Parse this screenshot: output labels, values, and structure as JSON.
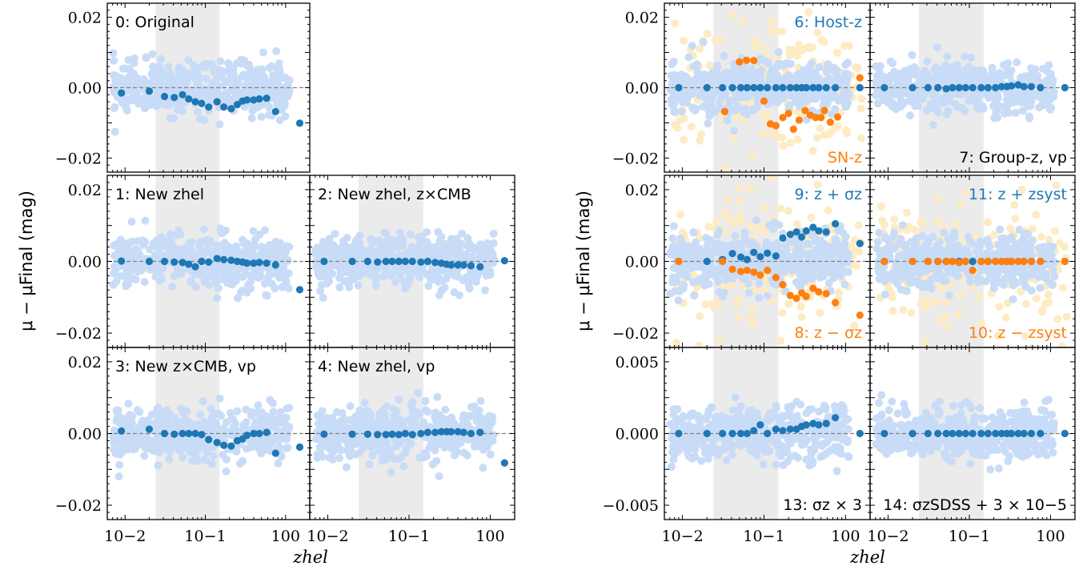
{
  "figure": {
    "left_ylabel": "μ − μFinal (mag)",
    "right_ylabel": "μ − μFinal (mag)",
    "left_xlabel": "zhel",
    "right_xlabel": "zhel",
    "xtick_labels": [
      "10−2",
      "10−1",
      "100"
    ],
    "colors": {
      "blue_points": "#1f77b4",
      "orange_points": "#ff7f0e",
      "light_blue_scatter": "#c9dcf7",
      "light_orange_scatter": "#fdebc4",
      "shaded_band": "#ebebeb",
      "zero_line": "#808080"
    }
  },
  "chart_data": [
    {
      "id": "0",
      "type": "scatter",
      "label": "0: Original",
      "xscale": "log",
      "xlim": [
        0.006,
        2.0
      ],
      "ylim": [
        -0.024,
        0.024
      ],
      "ytick_labels": [
        "0.02",
        "0.00",
        "−0.02"
      ],
      "ytick_values": [
        0.02,
        0.0,
        -0.02
      ],
      "shaded_x_range": [
        0.024,
        0.15
      ],
      "series": [
        {
          "color": "blue",
          "x": [
            0.009,
            0.02,
            0.031,
            0.041,
            0.052,
            0.062,
            0.075,
            0.09,
            0.11,
            0.14,
            0.17,
            0.21,
            0.25,
            0.29,
            0.33,
            0.4,
            0.47,
            0.58,
            0.75,
            1.5
          ],
          "y": [
            -0.0015,
            -0.001,
            -0.0025,
            -0.0028,
            -0.002,
            -0.0032,
            -0.004,
            -0.0045,
            -0.0055,
            -0.004,
            -0.0055,
            -0.006,
            -0.0048,
            -0.0038,
            -0.0035,
            -0.0035,
            -0.0032,
            -0.003,
            -0.0068,
            -0.0101
          ]
        }
      ]
    },
    {
      "id": "1",
      "type": "scatter",
      "label": "1: New zhel",
      "xscale": "log",
      "xlim": [
        0.006,
        2.0
      ],
      "ylim": [
        -0.024,
        0.024
      ],
      "ytick_labels": [
        "0.02",
        "0.00",
        "−0.02"
      ],
      "ytick_values": [
        0.02,
        0.0,
        -0.02
      ],
      "shaded_x_range": [
        0.024,
        0.15
      ],
      "series": [
        {
          "color": "blue",
          "x": [
            0.009,
            0.02,
            0.031,
            0.041,
            0.052,
            0.062,
            0.075,
            0.09,
            0.11,
            0.14,
            0.17,
            0.21,
            0.25,
            0.29,
            0.33,
            0.4,
            0.47,
            0.58,
            0.75,
            1.5
          ],
          "y": [
            0.0001,
            0.0,
            0.0,
            -0.0002,
            -0.0003,
            -0.0008,
            -0.0015,
            0.0,
            -0.0002,
            0.0008,
            0.0005,
            0.0003,
            0.0,
            -0.0002,
            -0.0005,
            -0.0005,
            -0.0003,
            -0.0005,
            -0.001,
            -0.0079
          ]
        }
      ]
    },
    {
      "id": "2",
      "type": "scatter",
      "label": "2: New zhel, z×CMB",
      "xscale": "log",
      "xlim": [
        0.006,
        2.0
      ],
      "ylim": [
        -0.024,
        0.024
      ],
      "shaded_x_range": [
        0.024,
        0.15
      ],
      "series": [
        {
          "color": "blue",
          "x": [
            0.009,
            0.02,
            0.031,
            0.041,
            0.052,
            0.062,
            0.075,
            0.09,
            0.11,
            0.14,
            0.17,
            0.21,
            0.25,
            0.29,
            0.33,
            0.4,
            0.47,
            0.58,
            0.75,
            1.5
          ],
          "y": [
            0.0,
            0.0,
            0.0,
            -0.0002,
            0.0,
            0.0,
            0.0,
            0.0,
            0.0,
            -0.0002,
            0.0,
            -0.0003,
            -0.0005,
            -0.0008,
            -0.001,
            -0.001,
            -0.001,
            -0.0012,
            -0.0015,
            0.0002
          ]
        }
      ]
    },
    {
      "id": "3",
      "type": "scatter",
      "label": "3: New z×CMB, vp",
      "xscale": "log",
      "xlim": [
        0.006,
        2.0
      ],
      "ylim": [
        -0.024,
        0.024
      ],
      "ytick_labels": [
        "0.02",
        "0.00",
        "−0.02"
      ],
      "ytick_values": [
        0.02,
        0.0,
        -0.02
      ],
      "shaded_x_range": [
        0.024,
        0.15
      ],
      "series": [
        {
          "color": "blue",
          "x": [
            0.009,
            0.02,
            0.031,
            0.041,
            0.052,
            0.062,
            0.075,
            0.09,
            0.11,
            0.14,
            0.17,
            0.21,
            0.25,
            0.29,
            0.33,
            0.4,
            0.47,
            0.58,
            0.75,
            1.5
          ],
          "y": [
            0.0007,
            0.0012,
            0.0,
            -0.0002,
            0.0,
            0.0,
            0.0,
            -0.0003,
            -0.0017,
            -0.0025,
            -0.0033,
            -0.0035,
            -0.002,
            -0.0015,
            -0.0005,
            0.0,
            0.0,
            0.0003,
            -0.0055,
            -0.0038
          ]
        }
      ]
    },
    {
      "id": "4",
      "type": "scatter",
      "label": "4: New zhel, vp",
      "xscale": "log",
      "xlim": [
        0.006,
        2.0
      ],
      "ylim": [
        -0.024,
        0.024
      ],
      "shaded_x_range": [
        0.024,
        0.15
      ],
      "series": [
        {
          "color": "blue",
          "x": [
            0.009,
            0.02,
            0.031,
            0.041,
            0.052,
            0.062,
            0.075,
            0.09,
            0.11,
            0.14,
            0.17,
            0.21,
            0.25,
            0.29,
            0.33,
            0.4,
            0.47,
            0.58,
            0.75,
            1.5
          ],
          "y": [
            -0.0002,
            -0.0002,
            -0.0002,
            -0.0003,
            -0.0003,
            -0.0002,
            -0.0003,
            0.0,
            -0.0003,
            0.0,
            0.0003,
            0.0003,
            0.0005,
            0.0005,
            0.0005,
            0.0005,
            0.0003,
            0.0,
            0.0003,
            -0.0082
          ]
        }
      ]
    },
    {
      "id": "6",
      "type": "scatter",
      "label": "6: Host-z",
      "label2": "SN-z",
      "xscale": "log",
      "xlim": [
        0.006,
        2.0
      ],
      "ylim": [
        -0.024,
        0.024
      ],
      "ytick_labels": [
        "0.02",
        "0.00",
        "−0.02"
      ],
      "ytick_values": [
        0.02,
        0.0,
        -0.02
      ],
      "shaded_x_range": [
        0.024,
        0.15
      ],
      "series": [
        {
          "color": "blue",
          "x": [
            0.009,
            0.02,
            0.031,
            0.041,
            0.052,
            0.062,
            0.075,
            0.09,
            0.11,
            0.14,
            0.17,
            0.21,
            0.25,
            0.29,
            0.33,
            0.4,
            0.47,
            0.58,
            0.75,
            1.5
          ],
          "y": [
            0.0,
            0.0,
            0.0,
            0.0,
            0.0,
            0.0,
            0.0,
            0.0,
            0.0,
            0.0,
            0.0,
            0.0,
            0.0,
            0.0,
            0.0,
            0.0,
            0.0,
            0.0,
            0.0,
            0.0
          ]
        },
        {
          "color": "orange",
          "x": [
            0.033,
            0.05,
            0.061,
            0.075,
            0.1,
            0.12,
            0.14,
            0.17,
            0.2,
            0.23,
            0.27,
            0.32,
            0.37,
            0.43,
            0.5,
            0.55,
            0.65,
            0.8,
            1.5
          ],
          "y": [
            -0.0068,
            0.0073,
            0.0078,
            0.0077,
            -0.0038,
            -0.0103,
            -0.0108,
            -0.0085,
            -0.0073,
            -0.0118,
            -0.0092,
            -0.0065,
            -0.0078,
            -0.0085,
            -0.0085,
            -0.0065,
            -0.0098,
            -0.0083,
            0.0028
          ]
        }
      ]
    },
    {
      "id": "7",
      "type": "scatter",
      "label": "7: Group-z, vp",
      "xscale": "log",
      "xlim": [
        0.006,
        2.0
      ],
      "ylim": [
        -0.024,
        0.024
      ],
      "shaded_x_range": [
        0.024,
        0.15
      ],
      "series": [
        {
          "color": "blue",
          "x": [
            0.009,
            0.02,
            0.031,
            0.041,
            0.052,
            0.062,
            0.075,
            0.09,
            0.11,
            0.14,
            0.17,
            0.21,
            0.25,
            0.29,
            0.33,
            0.4,
            0.47,
            0.58,
            0.75,
            1.5
          ],
          "y": [
            0.0,
            0.0,
            0.0,
            0.0,
            -0.0003,
            0.0,
            0.0,
            0.0,
            0.0,
            0.0,
            0.0,
            0.0,
            0.0003,
            0.0003,
            0.0005,
            0.0008,
            0.0003,
            0.0003,
            0.0,
            0.0
          ]
        }
      ]
    },
    {
      "id": "9",
      "type": "scatter",
      "label": "9: z + σz",
      "label2": "8: z − σz",
      "xscale": "log",
      "xlim": [
        0.006,
        2.0
      ],
      "ylim": [
        -0.024,
        0.024
      ],
      "ytick_labels": [
        "0.02",
        "0.00",
        "−0.02"
      ],
      "ytick_values": [
        0.02,
        0.0,
        -0.02
      ],
      "shaded_x_range": [
        0.024,
        0.15
      ],
      "series": [
        {
          "color": "blue",
          "x": [
            0.009,
            0.02,
            0.031,
            0.041,
            0.052,
            0.062,
            0.075,
            0.09,
            0.11,
            0.14,
            0.17,
            0.21,
            0.25,
            0.29,
            0.33,
            0.4,
            0.47,
            0.58,
            0.75,
            1.5
          ],
          "y": [
            0.0,
            0.0,
            0.0005,
            0.0022,
            0.0012,
            0.0005,
            0.0025,
            0.0013,
            0.0023,
            0.0015,
            0.0065,
            0.0075,
            0.0082,
            0.0068,
            0.0085,
            0.0095,
            0.0085,
            0.0082,
            0.0105,
            0.005
          ]
        },
        {
          "color": "orange",
          "x": [
            0.009,
            0.031,
            0.041,
            0.052,
            0.062,
            0.075,
            0.09,
            0.11,
            0.14,
            0.17,
            0.21,
            0.25,
            0.29,
            0.33,
            0.4,
            0.47,
            0.58,
            0.75,
            1.5
          ],
          "y": [
            0.0,
            0.0,
            -0.0022,
            -0.0028,
            -0.0025,
            -0.003,
            -0.0038,
            -0.0025,
            -0.0045,
            -0.0065,
            -0.0095,
            -0.0103,
            -0.0088,
            -0.0098,
            -0.0075,
            -0.0085,
            -0.009,
            -0.0115,
            -0.015
          ]
        }
      ]
    },
    {
      "id": "11",
      "type": "scatter",
      "label": "11: z + zsyst",
      "label2": "10: z − zsyst",
      "xscale": "log",
      "xlim": [
        0.006,
        2.0
      ],
      "ylim": [
        -0.024,
        0.024
      ],
      "shaded_x_range": [
        0.024,
        0.15
      ],
      "series": [
        {
          "color": "blue",
          "x": [
            0.009,
            0.02,
            0.031,
            0.041,
            0.052,
            0.062,
            0.075,
            0.09,
            0.11,
            0.14,
            0.17,
            0.21,
            0.25,
            0.29,
            0.33,
            0.4,
            0.47,
            0.58,
            0.75,
            1.5
          ],
          "y": [
            0.0,
            0.0,
            0.0,
            0.0,
            0.0,
            0.0,
            0.0,
            0.0,
            0.0,
            0.0,
            0.0,
            0.0,
            0.0,
            0.0,
            0.0,
            0.0,
            0.0,
            0.0,
            0.0,
            0.0
          ]
        },
        {
          "color": "orange",
          "x": [
            0.009,
            0.02,
            0.031,
            0.041,
            0.052,
            0.062,
            0.075,
            0.09,
            0.11,
            0.14,
            0.17,
            0.21,
            0.25,
            0.29,
            0.33,
            0.4,
            0.47,
            0.58,
            0.75,
            1.5
          ],
          "y": [
            0.0,
            0.0,
            0.0,
            0.0,
            0.0,
            0.0,
            -0.0003,
            0.0,
            -0.0025,
            0.0,
            0.0,
            0.0,
            0.0,
            0.0,
            0.0,
            0.0,
            0.0,
            0.0,
            0.0,
            0.0
          ]
        }
      ]
    },
    {
      "id": "13",
      "type": "scatter",
      "label": "13: σz × 3",
      "xscale": "log",
      "xlim": [
        0.006,
        2.0
      ],
      "ylim": [
        -0.006,
        0.006
      ],
      "ytick_labels": [
        "0.005",
        "0.000",
        "−0.005"
      ],
      "ytick_values": [
        0.005,
        0.0,
        -0.005
      ],
      "shaded_x_range": [
        0.024,
        0.15
      ],
      "series": [
        {
          "color": "blue",
          "x": [
            0.009,
            0.02,
            0.031,
            0.041,
            0.052,
            0.062,
            0.075,
            0.09,
            0.11,
            0.14,
            0.17,
            0.21,
            0.25,
            0.29,
            0.33,
            0.4,
            0.47,
            0.58,
            0.75,
            1.5
          ],
          "y": [
            0.0,
            0.0,
            0.0,
            0.0,
            0.0,
            0.0,
            0.0002,
            0.0006,
            0.0,
            0.0003,
            0.0002,
            0.0003,
            0.0003,
            0.0005,
            0.0006,
            0.0007,
            0.0006,
            0.0007,
            0.0011,
            0.0
          ]
        }
      ]
    },
    {
      "id": "14",
      "type": "scatter",
      "label": "14: σzSDSS + 3 × 10−5",
      "xscale": "log",
      "xlim": [
        0.006,
        2.0
      ],
      "ylim": [
        -0.006,
        0.006
      ],
      "shaded_x_range": [
        0.024,
        0.15
      ],
      "series": [
        {
          "color": "blue",
          "x": [
            0.009,
            0.02,
            0.031,
            0.041,
            0.052,
            0.062,
            0.075,
            0.09,
            0.11,
            0.14,
            0.17,
            0.21,
            0.25,
            0.29,
            0.33,
            0.4,
            0.47,
            0.58,
            0.75,
            1.5
          ],
          "y": [
            0.0,
            0.0,
            0.0,
            0.0,
            0.0,
            0.0,
            0.0,
            0.0,
            0.0,
            0.0,
            0.0,
            0.0,
            0.0,
            0.0,
            0.0,
            0.0,
            0.0,
            0.0,
            0.0,
            0.0
          ]
        }
      ]
    }
  ]
}
